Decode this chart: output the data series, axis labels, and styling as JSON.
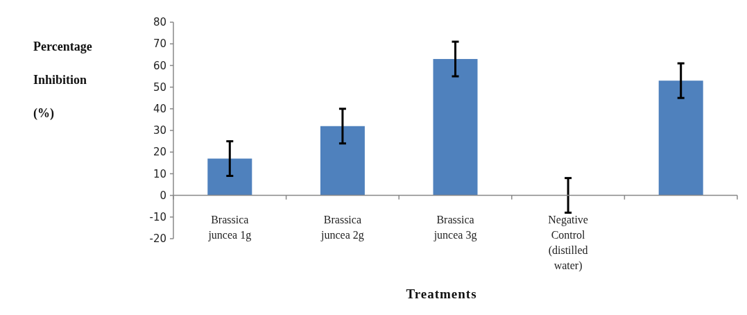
{
  "chart_data": {
    "type": "bar",
    "xlabel": "Treatments",
    "ylabel": "Percentage Inhibition (%)",
    "categories": [
      "Brassica juncea 1g",
      "Brassica juncea 2g",
      "Brassica juncea 3g",
      "Negative Control (distilled water)",
      null
    ],
    "values": [
      17,
      32,
      63,
      0,
      53
    ],
    "errors": [
      8,
      8,
      8,
      8,
      8
    ],
    "color": "#4f81bd",
    "ylim": [
      -20,
      80
    ],
    "yticks": [
      -20,
      -10,
      0,
      10,
      20,
      30,
      40,
      50,
      60,
      70,
      80
    ],
    "grid": false
  }
}
